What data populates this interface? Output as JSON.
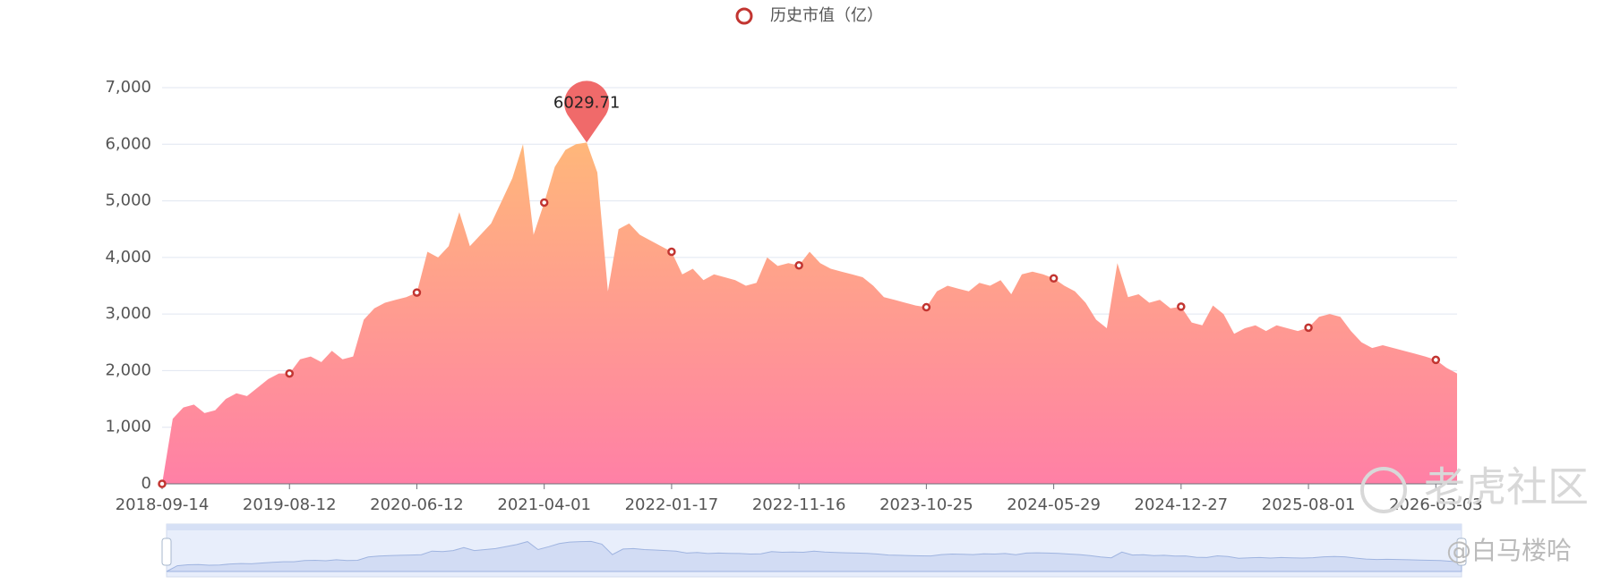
{
  "chart_data": {
    "type": "area",
    "legend": "历史市值（亿）",
    "categories": [
      "2018-09-14",
      null,
      null,
      null,
      null,
      null,
      null,
      null,
      null,
      null,
      null,
      null,
      "2019-08-12",
      null,
      null,
      null,
      null,
      null,
      null,
      null,
      null,
      null,
      null,
      null,
      "2020-06-12",
      null,
      null,
      null,
      null,
      null,
      null,
      null,
      null,
      null,
      null,
      null,
      "2021-04-01",
      null,
      null,
      null,
      null,
      null,
      null,
      null,
      null,
      null,
      null,
      null,
      "2022-01-17",
      null,
      null,
      null,
      null,
      null,
      null,
      null,
      null,
      null,
      null,
      null,
      "2022-11-16",
      null,
      null,
      null,
      null,
      null,
      null,
      null,
      null,
      null,
      null,
      null,
      "2023-10-25",
      null,
      null,
      null,
      null,
      null,
      null,
      null,
      null,
      null,
      null,
      null,
      "2024-05-29",
      null,
      null,
      null,
      null,
      null,
      null,
      null,
      null,
      null,
      null,
      null,
      "2024-12-27",
      null,
      null,
      null,
      null,
      null,
      null,
      null,
      null,
      null,
      null,
      null,
      "2025-08-01",
      null,
      null,
      null,
      null,
      null,
      null,
      null,
      null,
      null,
      null,
      null,
      "2026-03-03",
      null,
      null
    ],
    "series": [
      {
        "name": "历史市值（亿）",
        "color": "#c23531",
        "values": [
          0,
          1150,
          1350,
          1400,
          1250,
          1300,
          1500,
          1600,
          1550,
          1700,
          1850,
          1950,
          1950,
          2200,
          2250,
          2150,
          2350,
          2200,
          2250,
          2900,
          3100,
          3200,
          3250,
          3300,
          3380,
          4100,
          4000,
          4200,
          4800,
          4200,
          4400,
          4600,
          5000,
          5400,
          6000,
          4400,
          4970,
          5600,
          5900,
          6000,
          6029.71,
          5500,
          3400,
          4500,
          4600,
          4400,
          4300,
          4200,
          4100,
          3700,
          3800,
          3600,
          3700,
          3650,
          3600,
          3500,
          3550,
          4000,
          3850,
          3900,
          3860,
          4100,
          3900,
          3800,
          3750,
          3700,
          3650,
          3500,
          3300,
          3250,
          3200,
          3150,
          3120,
          3400,
          3500,
          3450,
          3400,
          3550,
          3500,
          3600,
          3350,
          3700,
          3750,
          3700,
          3630,
          3500,
          3400,
          3200,
          2900,
          2750,
          3900,
          3300,
          3350,
          3200,
          3250,
          3100,
          3130,
          2850,
          2800,
          3150,
          3000,
          2650,
          2750,
          2800,
          2700,
          2800,
          2750,
          2700,
          2760,
          2950,
          3000,
          2950,
          2700,
          2500,
          2400,
          2450,
          2400,
          2350,
          2300,
          2250,
          2190,
          2050,
          1950
        ]
      }
    ],
    "ylim": [
      0,
      7000
    ],
    "yticks": [
      0,
      {
        "value": 1000,
        "label": "1,000"
      },
      {
        "value": 2000,
        "label": "2,000"
      },
      {
        "value": 3000,
        "label": "3,000"
      },
      {
        "value": 4000,
        "label": "4,000"
      },
      {
        "value": 5000,
        "label": "5,000"
      },
      {
        "value": 6000,
        "label": "6,000"
      },
      {
        "value": 7000,
        "label": "7,000"
      }
    ],
    "grid": true,
    "watermarks": [
      "老虎社区",
      "@白马楼哈"
    ]
  }
}
